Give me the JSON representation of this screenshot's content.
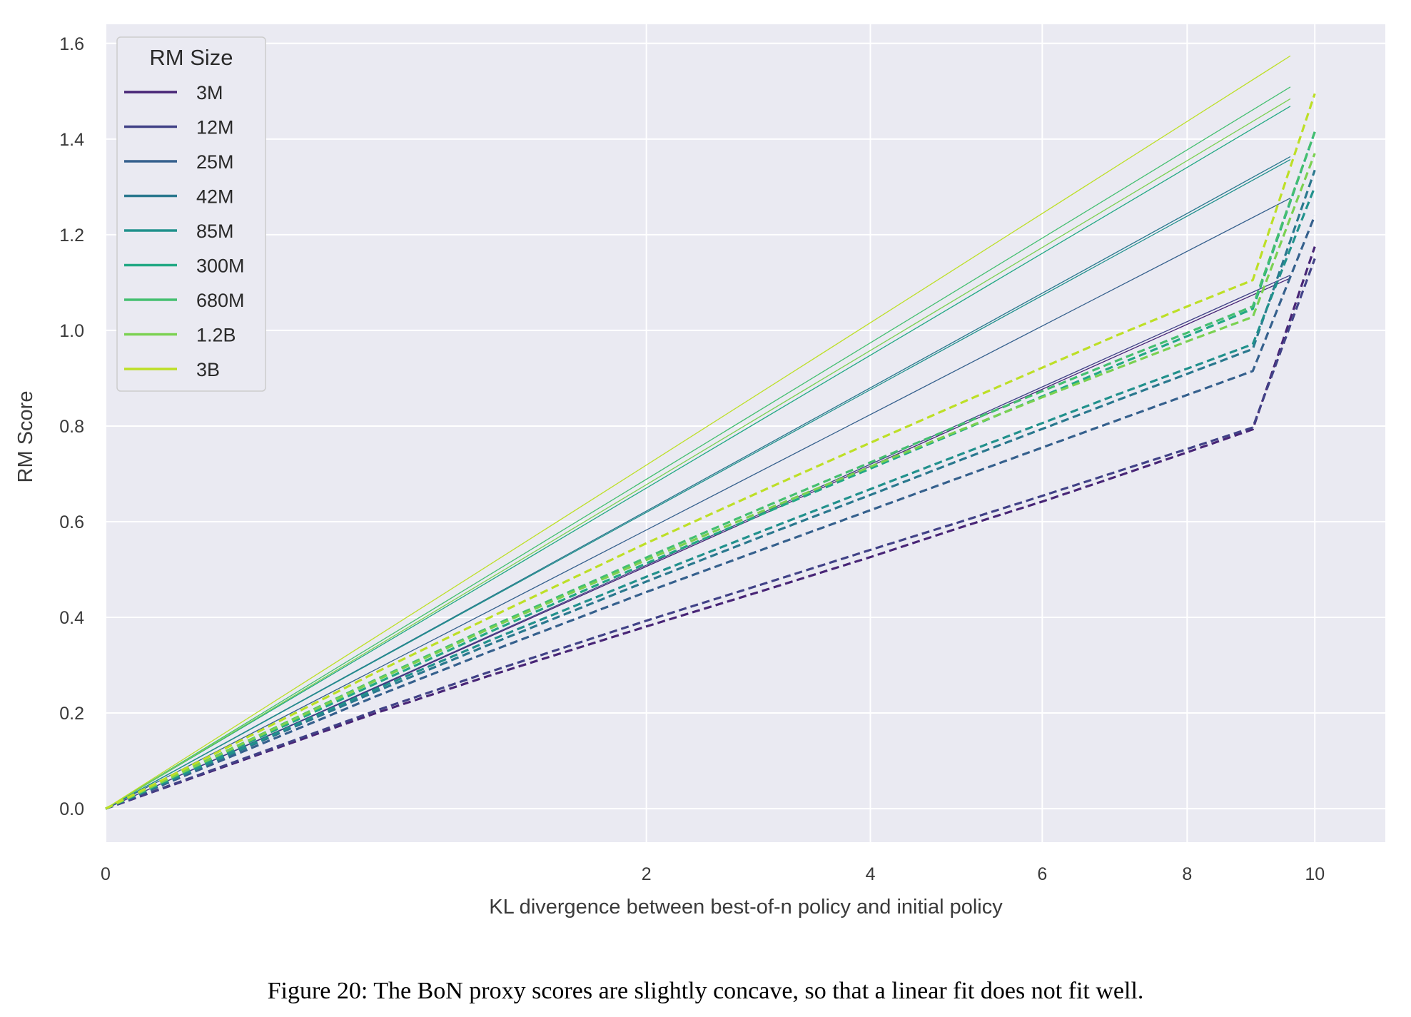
{
  "caption": "Figure 20: The BoN proxy scores are slightly concave, so that a linear fit does not fit well.",
  "chart_data": {
    "type": "line",
    "title": "",
    "xlabel": "KL divergence between best-of-n policy and initial policy",
    "ylabel": "RM Score",
    "x_scale": "sqrt",
    "xlim": [
      0,
      11.2
    ],
    "ylim": [
      -0.07,
      1.64
    ],
    "xticks": [
      0,
      2,
      4,
      6,
      8,
      10
    ],
    "yticks": [
      0.0,
      0.2,
      0.4,
      0.6,
      0.8,
      1.0,
      1.2,
      1.4,
      1.6
    ],
    "ytick_labels": [
      "0.0",
      "0.2",
      "0.4",
      "0.6",
      "0.8",
      "1.0",
      "1.2",
      "1.4",
      "1.6"
    ],
    "grid": true,
    "legend": {
      "title": "RM Size",
      "placement": "upper-left"
    },
    "style_note": "dashed = observed proxy RM score, solid (thin) = linear fit in sqrt(KL)",
    "series": [
      {
        "name": "3M",
        "color": "#482576",
        "fit_slope": 0.358,
        "fit_end": 9.6,
        "x": [
          0,
          0.5,
          1,
          2,
          3,
          4,
          5,
          6,
          7,
          8,
          9,
          10
        ],
        "y": [
          0,
          0.2,
          0.277,
          0.381,
          0.459,
          0.526,
          0.588,
          0.642,
          0.695,
          0.745,
          0.793,
          1.175
        ]
      },
      {
        "name": "12M",
        "color": "#414287",
        "fit_slope": 0.36,
        "fit_end": 9.6,
        "x": [
          0,
          0.5,
          1,
          2,
          3,
          4,
          5,
          6,
          7,
          8,
          9,
          10
        ],
        "y": [
          0,
          0.205,
          0.285,
          0.393,
          0.473,
          0.541,
          0.6,
          0.654,
          0.705,
          0.752,
          0.797,
          1.15
        ]
      },
      {
        "name": "25M",
        "color": "#35608d",
        "fit_slope": 0.412,
        "fit_end": 9.6,
        "x": [
          0,
          0.5,
          1,
          2,
          3,
          4,
          5,
          6,
          7,
          8,
          9,
          10
        ],
        "y": [
          0,
          0.235,
          0.327,
          0.453,
          0.546,
          0.624,
          0.693,
          0.755,
          0.812,
          0.865,
          0.915,
          1.24
        ]
      },
      {
        "name": "42M",
        "color": "#2a788e",
        "fit_slope": 0.44,
        "fit_end": 9.6,
        "x": [
          0,
          0.5,
          1,
          2,
          3,
          4,
          5,
          6,
          7,
          8,
          9,
          10
        ],
        "y": [
          0,
          0.245,
          0.342,
          0.475,
          0.574,
          0.656,
          0.729,
          0.794,
          0.854,
          0.909,
          0.961,
          1.335
        ]
      },
      {
        "name": "85M",
        "color": "#21918c",
        "fit_slope": 0.438,
        "fit_end": 9.6,
        "x": [
          0,
          0.5,
          1,
          2,
          3,
          4,
          5,
          6,
          7,
          8,
          9,
          10
        ],
        "y": [
          0,
          0.25,
          0.35,
          0.485,
          0.585,
          0.668,
          0.741,
          0.806,
          0.866,
          0.92,
          0.971,
          1.3
        ]
      },
      {
        "name": "300M",
        "color": "#22a884",
        "fit_slope": 0.474,
        "fit_end": 9.6,
        "x": [
          0,
          0.5,
          1,
          2,
          3,
          4,
          5,
          6,
          7,
          8,
          9,
          10
        ],
        "y": [
          0,
          0.262,
          0.368,
          0.513,
          0.621,
          0.711,
          0.79,
          0.862,
          0.928,
          0.988,
          1.045,
          1.415
        ]
      },
      {
        "name": "680M",
        "color": "#44bf70",
        "fit_slope": 0.487,
        "fit_end": 9.6,
        "x": [
          0,
          0.5,
          1,
          2,
          3,
          4,
          5,
          6,
          7,
          8,
          9,
          10
        ],
        "y": [
          0,
          0.27,
          0.378,
          0.525,
          0.634,
          0.724,
          0.803,
          0.873,
          0.937,
          0.995,
          1.05,
          1.415
        ]
      },
      {
        "name": "1.2B",
        "color": "#7ad151",
        "fit_slope": 0.479,
        "fit_end": 9.6,
        "x": [
          0,
          0.5,
          1,
          2,
          3,
          4,
          5,
          6,
          7,
          8,
          9,
          10
        ],
        "y": [
          0,
          0.268,
          0.375,
          0.52,
          0.627,
          0.715,
          0.792,
          0.86,
          0.921,
          0.977,
          1.028,
          1.37
        ]
      },
      {
        "name": "3B",
        "color": "#bddf26",
        "fit_slope": 0.508,
        "fit_end": 9.6,
        "x": [
          0,
          0.5,
          1,
          2,
          3,
          4,
          5,
          6,
          7,
          8,
          9,
          10
        ],
        "y": [
          0,
          0.285,
          0.398,
          0.555,
          0.67,
          0.765,
          0.848,
          0.922,
          0.99,
          1.05,
          1.105,
          1.495
        ]
      }
    ]
  }
}
